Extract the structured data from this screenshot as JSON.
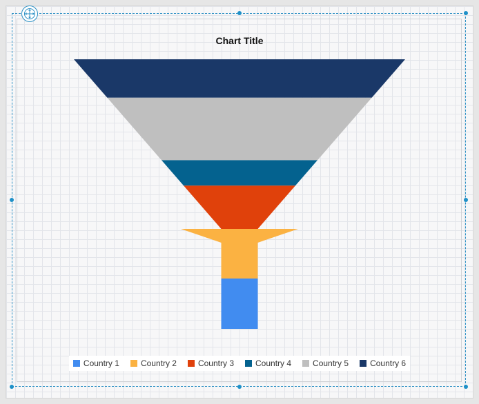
{
  "chart_data": {
    "type": "funnel",
    "title": "Chart Title",
    "categories": [
      "Country 6",
      "Country 5",
      "Country 4",
      "Country 3",
      "Country 2",
      "Country 1"
    ],
    "values": [
      480,
      390,
      240,
      175,
      60,
      53
    ],
    "colors": [
      "#1a3868",
      "#bfbfbf",
      "#04628f",
      "#e0410b",
      "#fbb242",
      "#418cf0"
    ],
    "legend": {
      "position": "bottom",
      "items": [
        {
          "label": "Country 1",
          "color": "#418cf0"
        },
        {
          "label": "Country 2",
          "color": "#fbb242"
        },
        {
          "label": "Country 3",
          "color": "#e0410b"
        },
        {
          "label": "Country 4",
          "color": "#04628f"
        },
        {
          "label": "Country 5",
          "color": "#bfbfbf"
        },
        {
          "label": "Country 6",
          "color": "#1a3868"
        }
      ]
    }
  },
  "icons": {
    "move_handle": "move-arrows-icon"
  }
}
